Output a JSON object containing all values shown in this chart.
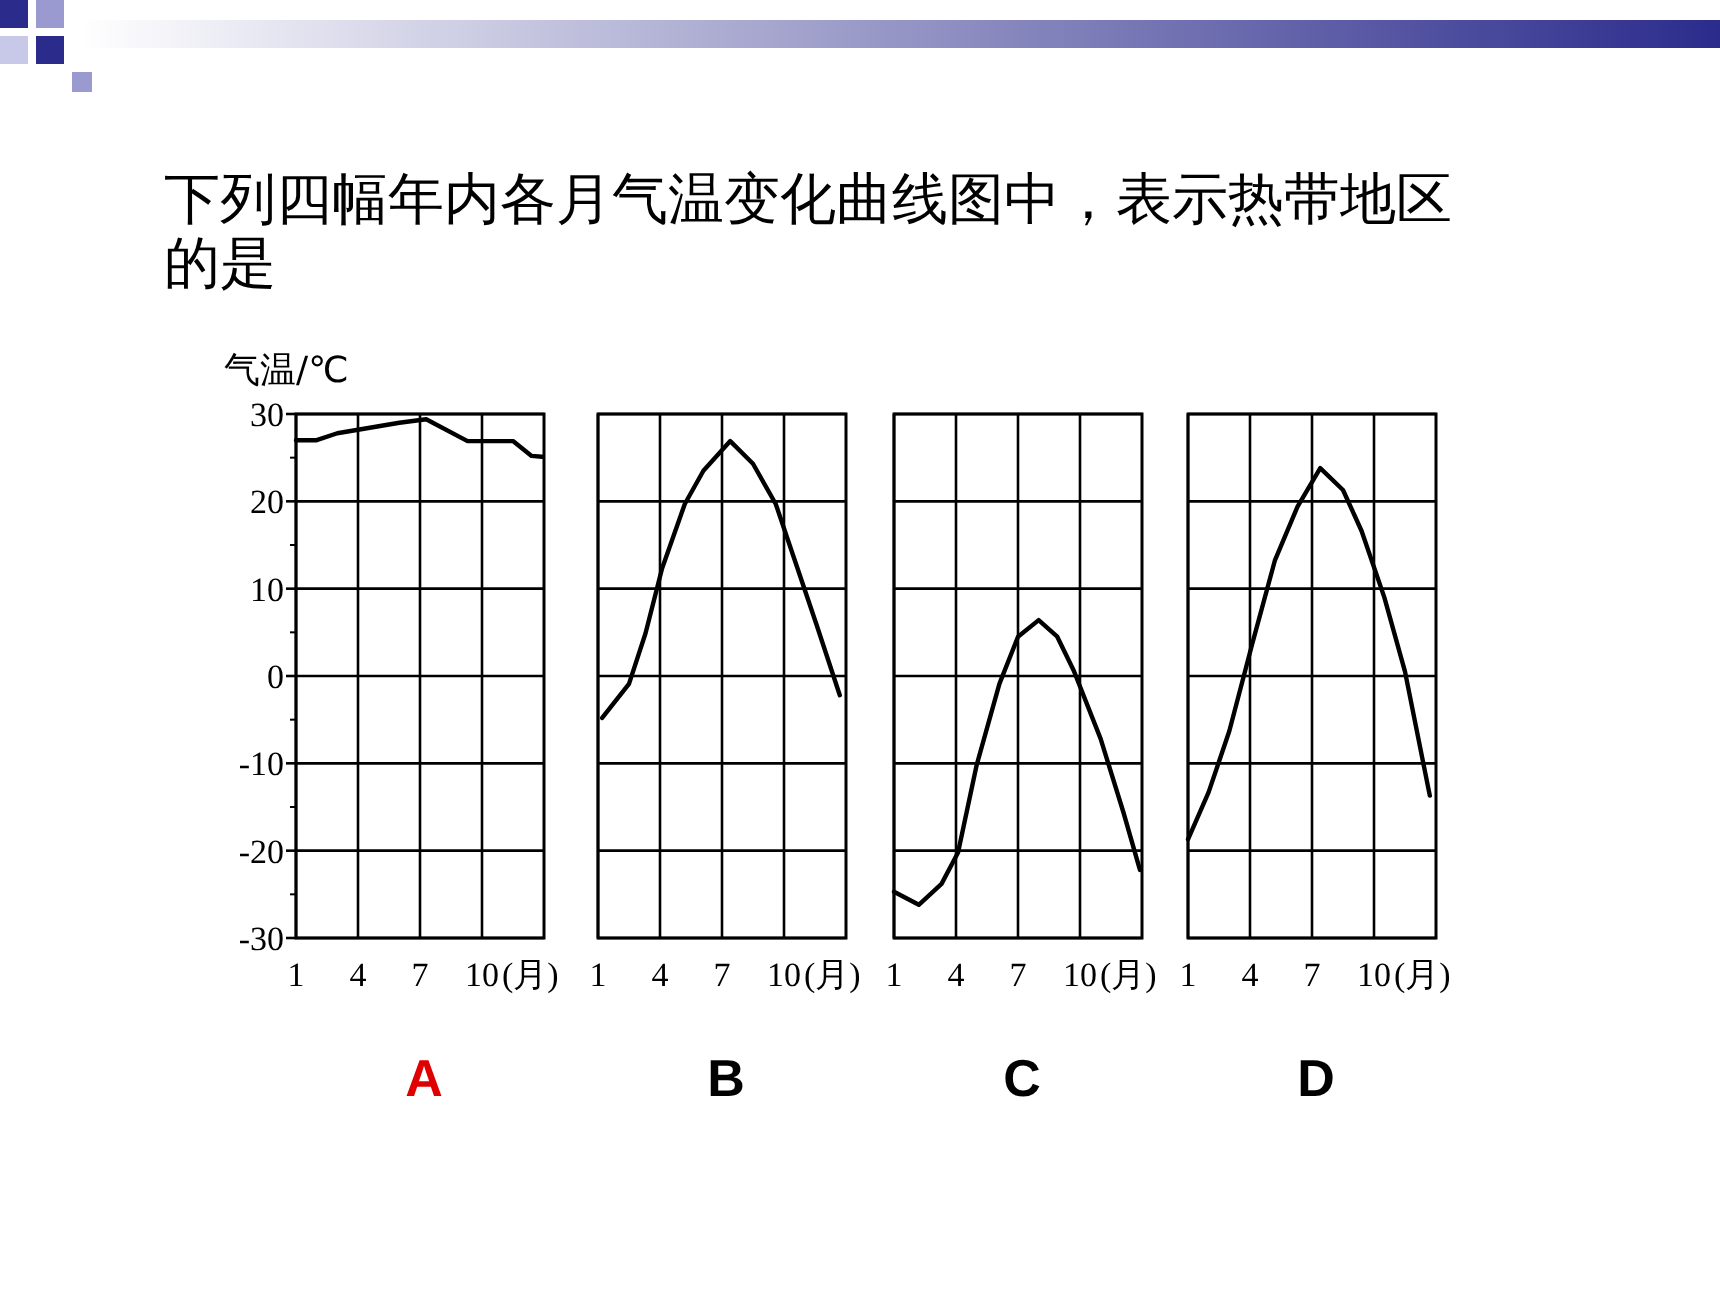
{
  "chart_data": [
    {
      "type": "line",
      "title": "下列四幅年内各月气温变化曲线图中，表示热带地区的是",
      "ylabel": "气温/℃",
      "xlabel": "(月)",
      "annotations": [
        "A"
      ],
      "xlim": [
        1,
        13
      ],
      "xticks": [
        1,
        4,
        7,
        10
      ],
      "ylim": [
        -30,
        30
      ],
      "yticks": [
        -30,
        -20,
        -10,
        0,
        10,
        20,
        30
      ],
      "grid": true,
      "color": "#000000",
      "x": [
        1,
        2,
        3,
        4,
        5,
        6,
        7.3,
        9.3,
        11.5,
        12.4,
        12.9
      ],
      "values": [
        27,
        27,
        27.8,
        28.2,
        28.6,
        29,
        29.4,
        26.9,
        26.9,
        25.2,
        25.1
      ]
    },
    {
      "type": "line",
      "xlabel": "(月)",
      "annotations": [
        "B"
      ],
      "xlim": [
        1,
        13
      ],
      "xticks": [
        1,
        4,
        7,
        10
      ],
      "ylim": [
        -30,
        30
      ],
      "yticks": [
        -30,
        -20,
        -10,
        0,
        10,
        20,
        30
      ],
      "grid": true,
      "tick_labels": "x",
      "color": "#000000",
      "x": [
        1.2,
        2.5,
        3.3,
        4.1,
        5.2,
        6.1,
        7.4,
        8.5,
        9.6,
        10.5,
        11.6,
        12.7
      ],
      "values": [
        -4.8,
        -0.9,
        4.9,
        12.3,
        19.7,
        23.5,
        26.9,
        24.3,
        19.7,
        13.4,
        5.7,
        -2.2
      ]
    },
    {
      "type": "line",
      "xlabel": "(月)",
      "annotations": [
        "C"
      ],
      "xlim": [
        1,
        13
      ],
      "xticks": [
        1,
        4,
        7,
        10
      ],
      "ylim": [
        -30,
        30
      ],
      "yticks": [
        -30,
        -20,
        -10,
        0,
        10,
        20,
        30
      ],
      "grid": true,
      "tick_labels": "x",
      "color": "#000000",
      "x": [
        1,
        2.2,
        3.3,
        4.1,
        5,
        6.1,
        7,
        8,
        8.9,
        9.7,
        11,
        12.1,
        12.9
      ],
      "values": [
        -24.7,
        -26.2,
        -23.8,
        -20.2,
        -10.2,
        -0.9,
        4.5,
        6.4,
        4.5,
        0.6,
        -7.2,
        -15.6,
        -22.2
      ]
    },
    {
      "type": "line",
      "xlabel": "(月)",
      "annotations": [
        "D"
      ],
      "xlim": [
        1,
        13
      ],
      "xticks": [
        1,
        4,
        7,
        10
      ],
      "ylim": [
        -30,
        30
      ],
      "yticks": [
        -30,
        -20,
        -10,
        0,
        10,
        20,
        30
      ],
      "grid": true,
      "tick_labels": "x",
      "color": "#000000",
      "x": [
        1,
        2,
        3,
        4.1,
        5.2,
        6.3,
        7.4,
        8.5,
        9.4,
        10.5,
        11.5,
        12.7
      ],
      "values": [
        -18.7,
        -13.3,
        -6.3,
        3.6,
        13.2,
        19.4,
        23.8,
        21.3,
        16.6,
        9,
        0.5,
        -13.7
      ]
    }
  ]
}
